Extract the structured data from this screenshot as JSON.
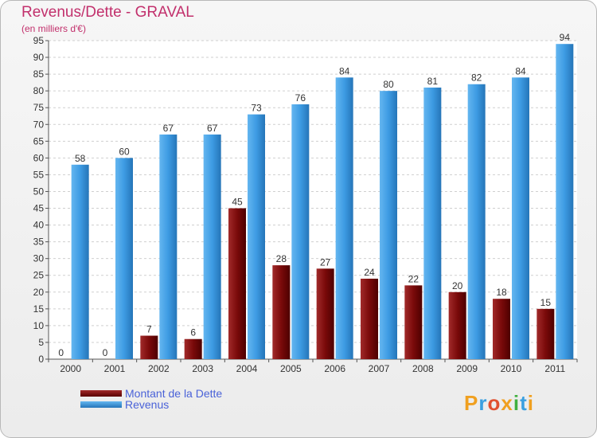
{
  "title": "Revenus/Dette - GRAVAL",
  "subtitle": "(en milliers d'€)",
  "chart_data": {
    "type": "bar",
    "categories": [
      "2000",
      "2001",
      "2002",
      "2003",
      "2004",
      "2005",
      "2006",
      "2007",
      "2008",
      "2009",
      "2010",
      "2011"
    ],
    "series": [
      {
        "name": "Montant de la Dette",
        "color": "#7a0a0a",
        "values": [
          0,
          0,
          7,
          6,
          45,
          28,
          27,
          24,
          22,
          20,
          18,
          15
        ]
      },
      {
        "name": "Revenus",
        "color": "#3d9be3",
        "values": [
          58,
          60,
          67,
          67,
          73,
          76,
          84,
          80,
          81,
          82,
          84,
          94
        ]
      }
    ],
    "ylim": [
      0,
      95
    ],
    "yticks": [
      0,
      5,
      10,
      15,
      20,
      25,
      30,
      35,
      40,
      45,
      50,
      55,
      60,
      65,
      70,
      75,
      80,
      85,
      90,
      95
    ],
    "grid": true,
    "legend_position": "bottom-left"
  },
  "logo": {
    "text": "Proxiti",
    "colors": [
      "#f0a020",
      "#3aa0e0",
      "#e05030",
      "#f0a020",
      "#40b040",
      "#3aa0e0",
      "#f0a020"
    ]
  }
}
